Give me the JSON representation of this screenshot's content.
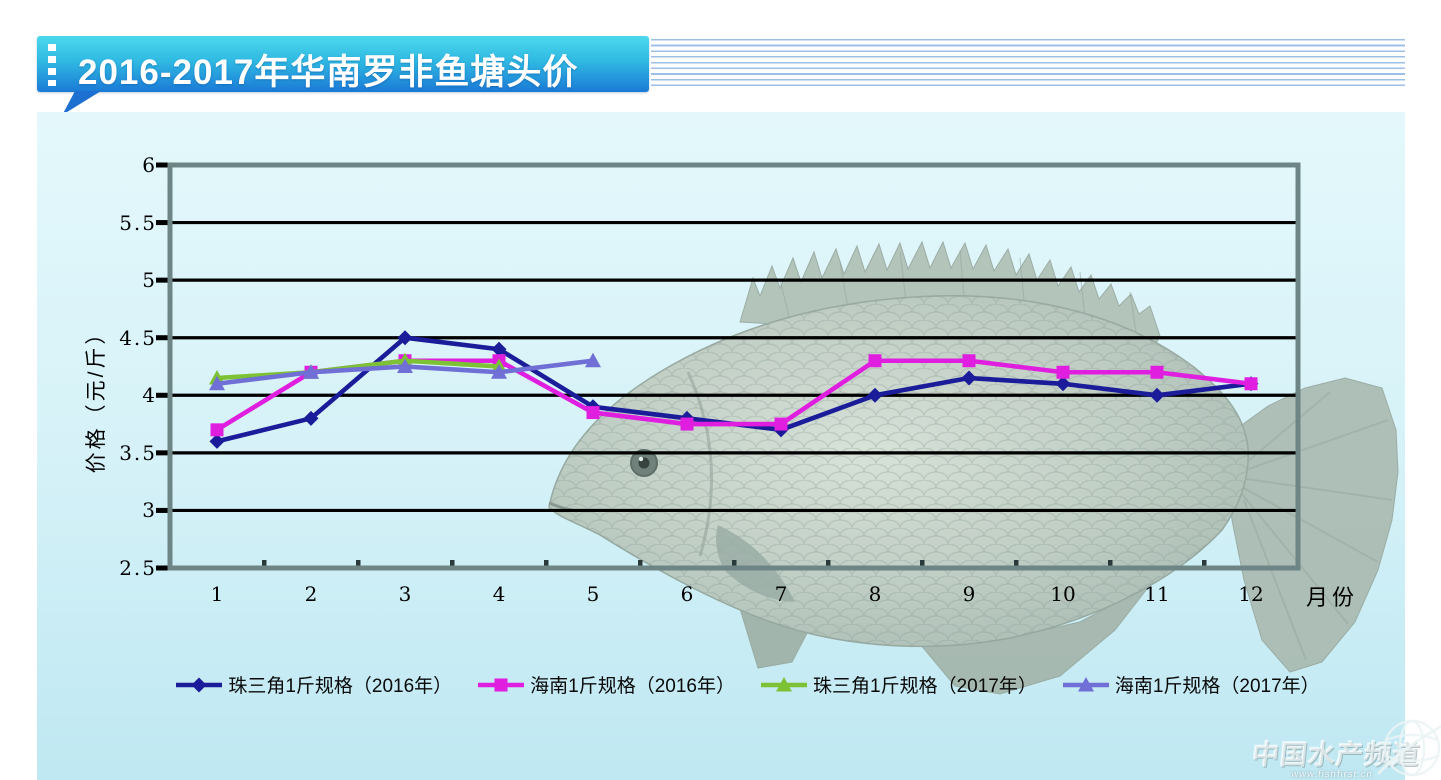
{
  "banner": {
    "title": "2016-2017年华南罗非鱼塘头价"
  },
  "chart_data": {
    "type": "line",
    "title": "2016-2017年华南罗非鱼塘头价",
    "xlabel": "月份",
    "ylabel": "价格（元/斤）",
    "x": [
      1,
      2,
      3,
      4,
      5,
      6,
      7,
      8,
      9,
      10,
      11,
      12
    ],
    "ylim": [
      2.5,
      6
    ],
    "ytick_step": 0.5,
    "grid": true,
    "legend_position": "bottom",
    "series": [
      {
        "name": "珠三角1斤规格（2016年）",
        "color": "#1a1c99",
        "marker": "diamond",
        "values": [
          3.6,
          3.8,
          4.5,
          4.4,
          3.9,
          3.8,
          3.7,
          4.0,
          4.15,
          4.1,
          4.0,
          4.1
        ]
      },
      {
        "name": "海南1斤规格（2016年）",
        "color": "#e01ee0",
        "marker": "square",
        "values": [
          3.7,
          4.2,
          4.3,
          4.3,
          3.85,
          3.75,
          3.75,
          4.3,
          4.3,
          4.2,
          4.2,
          4.1
        ]
      },
      {
        "name": "珠三角1斤规格（2017年）",
        "color": "#7cc234",
        "marker": "triangle",
        "values": [
          4.15,
          4.2,
          4.3,
          4.25,
          null,
          null,
          null,
          null,
          null,
          null,
          null,
          null
        ]
      },
      {
        "name": "海南1斤规格（2017年）",
        "color": "#6f6fd6",
        "marker": "triangle",
        "values": [
          4.1,
          4.2,
          4.25,
          4.2,
          4.3,
          null,
          null,
          null,
          null,
          null,
          null,
          null
        ]
      }
    ]
  },
  "watermark": {
    "name": "中国水产频道",
    "url": "www.fishfirst.cn"
  },
  "colors": {
    "banner_top": "#4cd9ec",
    "banner_bottom": "#1b7ad6",
    "banner_tail": "#1d6fd0",
    "pinstripe": "#9cbfe6",
    "panel_background": "#d6f2f8",
    "plot_frame": "#6e8585",
    "gridline": "#000000"
  }
}
